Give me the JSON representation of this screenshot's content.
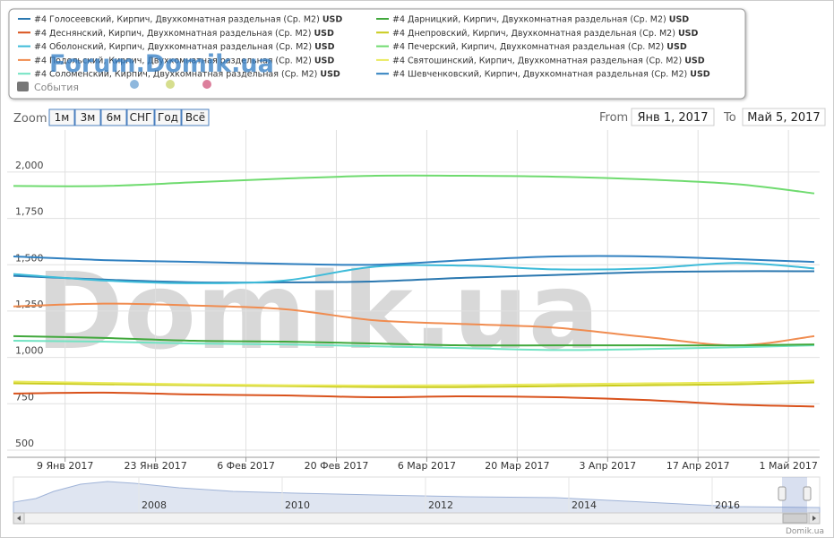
{
  "range_selector": {
    "zoom_label": "Zoom",
    "buttons": [
      "1м",
      "3м",
      "6м",
      "СНГ",
      "Год",
      "Всё"
    ],
    "from_label": "From",
    "from": "Янв 1, 2017",
    "to_label": "To",
    "to": "Май 5, 2017"
  },
  "legend": {
    "events": "События",
    "suffix": "USD"
  },
  "watermarks": {
    "forum": "Forum.Domik.ua",
    "main": "Domik.ua"
  },
  "navigator": {
    "labels": [
      "2008",
      "2010",
      "2012",
      "2014",
      "2016"
    ]
  },
  "credit": "Domik.ua",
  "chart_data": {
    "type": "line",
    "x": [
      "2017-01-01",
      "2017-01-15",
      "2017-01-29",
      "2017-02-12",
      "2017-02-26",
      "2017-03-12",
      "2017-03-26",
      "2017-04-09",
      "2017-04-23",
      "2017-05-05"
    ],
    "xlim": [
      "2017-01-01",
      "2017-05-05"
    ],
    "xticks": [
      {
        "value": "2017-01-09",
        "label": "9 Янв 2017"
      },
      {
        "value": "2017-01-23",
        "label": "23 Янв 2017"
      },
      {
        "value": "2017-02-06",
        "label": "6 Фев 2017"
      },
      {
        "value": "2017-02-20",
        "label": "20 Фев 2017"
      },
      {
        "value": "2017-03-06",
        "label": "6 Мар 2017"
      },
      {
        "value": "2017-03-20",
        "label": "20 Мар 2017"
      },
      {
        "value": "2017-04-03",
        "label": "3 Апр 2017"
      },
      {
        "value": "2017-04-17",
        "label": "17 Апр 2017"
      },
      {
        "value": "2017-05-01",
        "label": "1 Май 2017"
      }
    ],
    "ylim": [
      461,
      2227
    ],
    "yticks": [
      500,
      750,
      {
        "value": 1000,
        "label": "1,000"
      },
      {
        "value": 1250,
        "label": "1,250"
      },
      {
        "value": 1500,
        "label": "1,500"
      },
      {
        "value": 1750,
        "label": "1,750"
      },
      {
        "value": 2000,
        "label": "2,000"
      }
    ],
    "grid": true,
    "series": [
      {
        "name": "#4 Голосеевский, Кирпич, Двухкомнатная раздельная (Ср. M2)",
        "color": "#2b78b0",
        "values": [
          1440,
          1420,
          1405,
          1405,
          1410,
          1430,
          1445,
          1460,
          1465,
          1465
        ]
      },
      {
        "name": "#4 Деснянский, Кирпич, Двухкомнатная раздельная (Ср. M2)",
        "color": "#d9521c",
        "values": [
          805,
          810,
          800,
          795,
          785,
          790,
          785,
          770,
          745,
          735
        ]
      },
      {
        "name": "#4 Оболонский, Кирпич, Двухкомнатная раздельная (Ср. M2)",
        "color": "#3dbbd9",
        "values": [
          1450,
          1415,
          1400,
          1415,
          1490,
          1495,
          1475,
          1480,
          1510,
          1480
        ]
      },
      {
        "name": "#4 Подольский, Кирпич, Двухкомнатная раздельная (Ср. M2)",
        "color": "#f08c50",
        "values": [
          1275,
          1290,
          1280,
          1260,
          1200,
          1180,
          1160,
          1110,
          1065,
          1115
        ]
      },
      {
        "name": "#4 Соломенский, Кирпич, Двухкомнатная раздельная (Ср. M2)",
        "color": "#72e3c3",
        "values": [
          1090,
          1085,
          1075,
          1070,
          1060,
          1050,
          1040,
          1045,
          1055,
          1065
        ]
      },
      {
        "name": "#4 Дарницкий, Кирпич, Двухкомнатная раздельная (Ср. M2)",
        "color": "#41a83c",
        "values": [
          1115,
          1105,
          1090,
          1085,
          1075,
          1065,
          1065,
          1065,
          1065,
          1070
        ]
      },
      {
        "name": "#4 Днепровский, Кирпич, Двухкомнатная раздельная (Ср. M2)",
        "color": "#c9cb1c",
        "values": [
          860,
          855,
          850,
          845,
          840,
          840,
          845,
          850,
          855,
          865
        ]
      },
      {
        "name": "#4 Печерский, Кирпич, Двухкомнатная раздельная (Ср. M2)",
        "color": "#6fdb6f",
        "values": [
          1925,
          1925,
          1945,
          1965,
          1980,
          1980,
          1975,
          1960,
          1935,
          1885
        ]
      },
      {
        "name": "#4 Святошинский, Кирпич, Двухкомнатная раздельная (Ср. M2)",
        "color": "#eaea60",
        "values": [
          870,
          862,
          855,
          850,
          848,
          850,
          855,
          860,
          865,
          875
        ]
      },
      {
        "name": "#4 Шевченковский, Кирпич, Двухкомнатная раздельная (Ср. M2)",
        "color": "#3080c0",
        "values": [
          1545,
          1525,
          1515,
          1505,
          1500,
          1525,
          1545,
          1545,
          1530,
          1515
        ]
      }
    ]
  }
}
